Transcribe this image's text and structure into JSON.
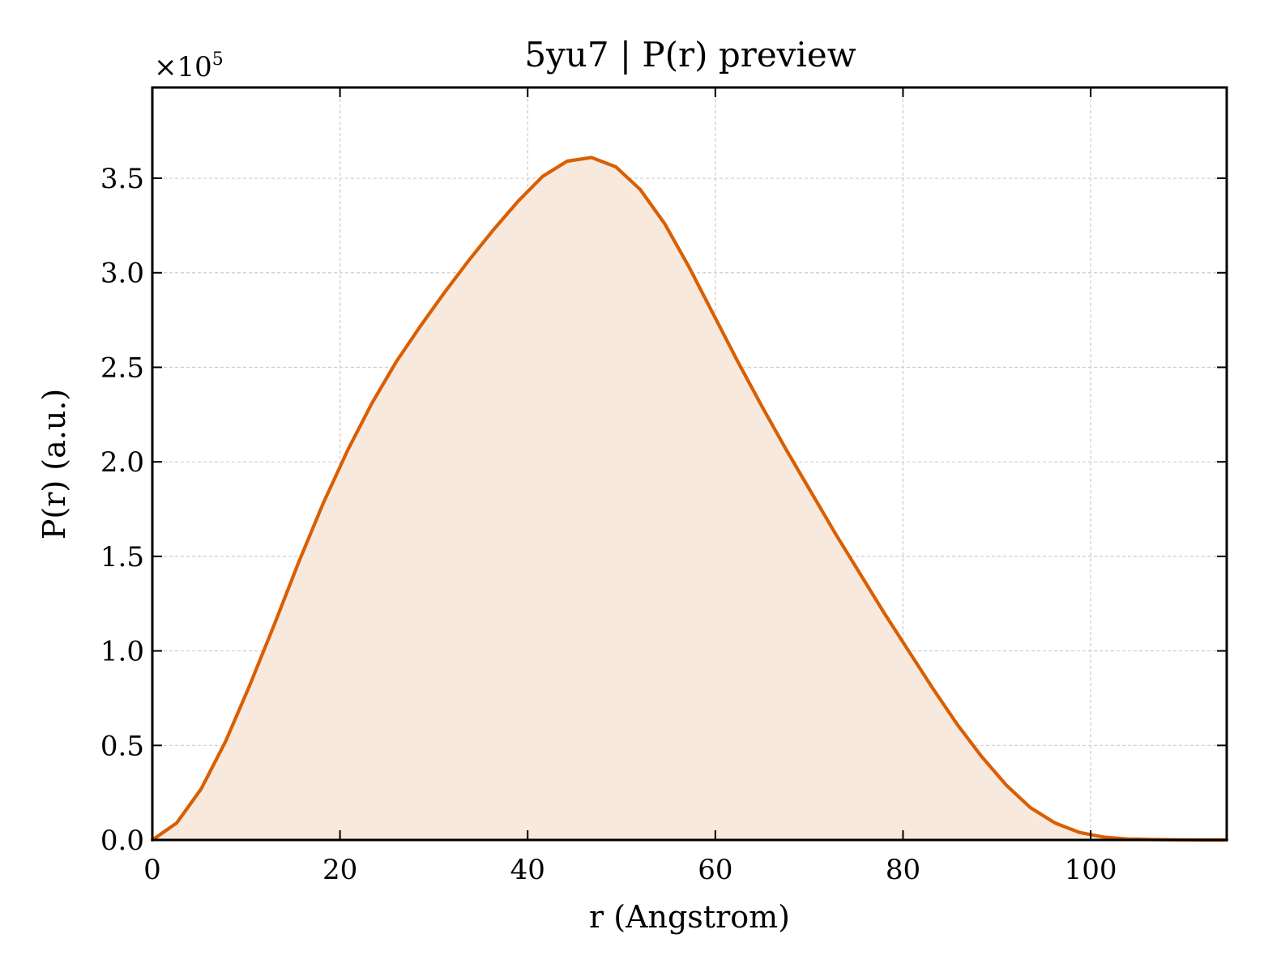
{
  "chart_data": {
    "type": "area",
    "title": "5yu7 | P(r) preview",
    "xlabel": "r (Angstrom)",
    "ylabel": "P(r) (a.u.)",
    "y_offset_label": {
      "prefix": "×10",
      "exponent": "5"
    },
    "xlim": [
      0,
      114.5
    ],
    "ylim": [
      0,
      3.98
    ],
    "x_ticks": [
      0,
      20,
      40,
      60,
      80,
      100
    ],
    "x_tick_labels": [
      "0",
      "20",
      "40",
      "60",
      "80",
      "100"
    ],
    "y_ticks": [
      0,
      0.5,
      1.0,
      1.5,
      2.0,
      2.5,
      3.0,
      3.5
    ],
    "y_tick_labels": [
      "0.0",
      "0.5",
      "1.0",
      "1.5",
      "2.0",
      "2.5",
      "3.0",
      "3.5"
    ],
    "grid": true,
    "line_color": "#d95f02",
    "fill_color": "#f8e9df",
    "series": [
      {
        "x": [
          0,
          2.6,
          5.2,
          7.8,
          10.4,
          13.0,
          15.6,
          18.2,
          20.8,
          23.4,
          26.0,
          28.6,
          31.2,
          33.8,
          36.4,
          39.0,
          41.6,
          44.2,
          46.8,
          49.4,
          52.0,
          54.6,
          57.2,
          59.8,
          62.4,
          65.0,
          67.6,
          70.2,
          72.8,
          75.4,
          78.0,
          80.6,
          83.2,
          85.8,
          88.4,
          91.0,
          93.6,
          96.2,
          98.8,
          101.4,
          104.0,
          106.6,
          109.2,
          111.8,
          114.5
        ],
        "values": [
          0.0,
          0.09,
          0.27,
          0.52,
          0.82,
          1.14,
          1.47,
          1.78,
          2.06,
          2.31,
          2.53,
          2.72,
          2.9,
          3.07,
          3.23,
          3.38,
          3.51,
          3.59,
          3.61,
          3.56,
          3.44,
          3.26,
          3.03,
          2.78,
          2.53,
          2.29,
          2.06,
          1.84,
          1.62,
          1.41,
          1.2,
          1.0,
          0.8,
          0.61,
          0.44,
          0.29,
          0.17,
          0.09,
          0.04,
          0.015,
          0.005,
          0.002,
          0.001,
          0.0,
          0.0
        ]
      }
    ]
  }
}
